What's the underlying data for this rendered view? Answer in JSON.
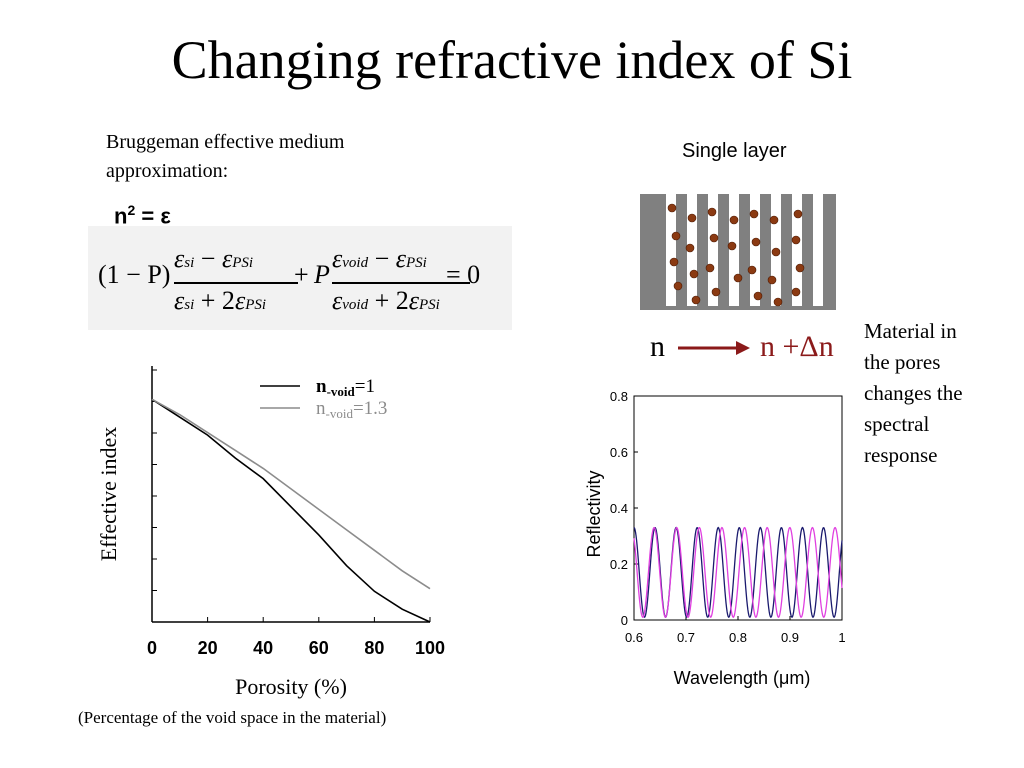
{
  "slide": {
    "title": "Changing refractive index of Si",
    "intro_line1": "Bruggeman effective medium",
    "intro_line2": "approximation:",
    "formula": {
      "n2": "n",
      "n2_sup": "2",
      "n2_rest": " = ε",
      "one_minus_p": "(1 − P)",
      "plus": "+",
      "p": "P",
      "eq_zero": "= 0",
      "eps": "ε",
      "minus": " − ",
      "plus_2": " + 2",
      "sub_si": "si",
      "sub_psi": "PSi",
      "sub_void": "void"
    },
    "diagram": {
      "heading": "Single layer",
      "n_label": "n",
      "n_delta_label": "n +Δn",
      "pore_color": "#ffffff",
      "wall_color": "#808080",
      "particle_color": "#8b3a12",
      "arrow_color": "#8b1a1a"
    },
    "side_text": [
      "Material in",
      "the pores",
      "changes the",
      "spectral",
      "response"
    ],
    "caption": "(Percentage of the void space in the material)"
  },
  "chart_data": [
    {
      "type": "line",
      "xlabel": "Porosity (%)",
      "ylabel": "Effective index",
      "xlim": [
        0,
        100
      ],
      "x_ticks": [
        "0",
        "20",
        "40",
        "60",
        "80",
        "100"
      ],
      "legend": {
        "placement": "top-right"
      },
      "series": [
        {
          "name_main": "n",
          "name_sub": "-void",
          "name_rest": "=1",
          "color": "#000000",
          "x": [
            0,
            10,
            20,
            30,
            40,
            50,
            60,
            70,
            80,
            90,
            100
          ],
          "y": [
            0.87,
            0.8,
            0.73,
            0.64,
            0.56,
            0.45,
            0.34,
            0.22,
            0.12,
            0.05,
            0.0
          ]
        },
        {
          "name_main": "n",
          "name_sub": "-void",
          "name_rest": "=1.3",
          "color": "#8c8c8c",
          "x": [
            0,
            10,
            20,
            30,
            40,
            50,
            60,
            70,
            80,
            90,
            100
          ],
          "y": [
            0.87,
            0.81,
            0.74,
            0.67,
            0.6,
            0.52,
            0.44,
            0.36,
            0.28,
            0.2,
            0.13
          ]
        }
      ]
    },
    {
      "type": "line",
      "xlabel": "Wavelength (μm)",
      "ylabel": "Reflectivity",
      "xlim": [
        0.6,
        1.0
      ],
      "ylim": [
        0,
        0.8
      ],
      "x_ticks": [
        "0.6",
        "0.7",
        "0.8",
        "0.9",
        "1"
      ],
      "y_ticks": [
        "0",
        "0.2",
        "0.4",
        "0.6",
        "0.8"
      ],
      "series": [
        {
          "color": "#1a1a6e",
          "period": 0.0405,
          "phase": 0.0,
          "amplitude": 0.32
        },
        {
          "color": "#e040e0",
          "period": 0.0435,
          "phase": 0.7,
          "amplitude": 0.32
        }
      ]
    }
  ]
}
